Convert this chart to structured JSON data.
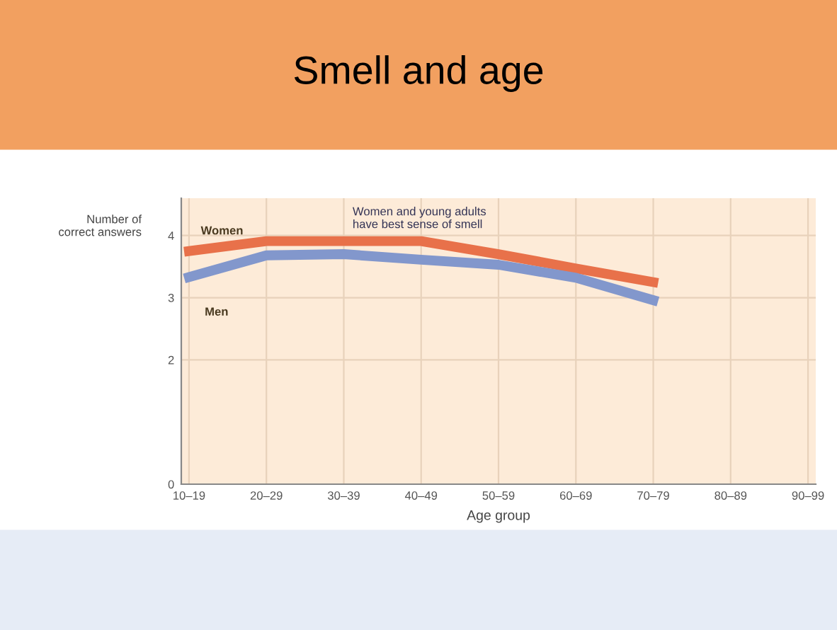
{
  "chart_data": {
    "type": "line",
    "title": "Smell and age",
    "xlabel": "Age group",
    "ylabel": "Number of\ncorrect answers",
    "annotations": [
      "Women and young adults\nhave best sense of smell"
    ],
    "categories": [
      "10–19",
      "20–29",
      "30–39",
      "40–49",
      "50–59",
      "60–69",
      "70–79",
      "80–89",
      "90–99"
    ],
    "series": [
      {
        "name": "Women",
        "color": "#e8714a",
        "values": [
          3.75,
          3.91,
          3.91,
          3.91,
          3.7,
          3.47,
          3.25,
          null,
          null
        ]
      },
      {
        "name": "Men",
        "color": "#8297cc",
        "values": [
          3.33,
          3.68,
          3.7,
          3.61,
          3.53,
          3.32,
          2.96,
          null,
          null
        ]
      }
    ],
    "ylim": [
      0,
      4.6
    ],
    "yticks": [
      0,
      2,
      3,
      4
    ],
    "grid": true,
    "legend": false,
    "marker": "none",
    "line_style": "solid"
  }
}
